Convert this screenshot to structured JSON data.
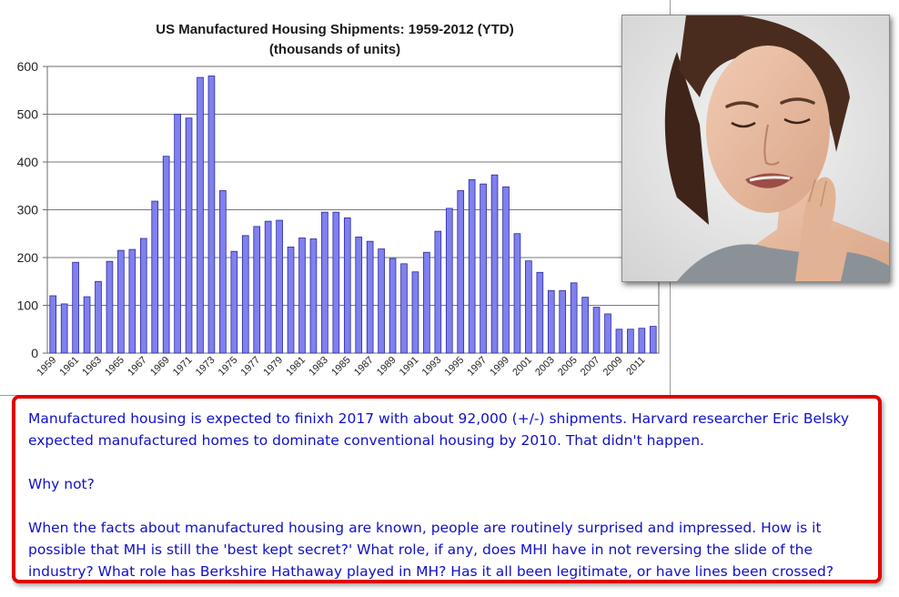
{
  "chart_data": {
    "type": "bar",
    "title": "US Manufactured Housing Shipments: 1959-2012 (YTD)",
    "subtitle": "(thousands of units)",
    "xlabel": "",
    "ylabel": "",
    "ylim": [
      0,
      600
    ],
    "yticks": [
      0,
      100,
      200,
      300,
      400,
      500,
      600
    ],
    "grid": true,
    "legend": "none",
    "bar_color": "#8080ee",
    "categories": [
      "1959",
      "1960",
      "1961",
      "1962",
      "1963",
      "1964",
      "1965",
      "1966",
      "1967",
      "1968",
      "1969",
      "1970",
      "1971",
      "1972",
      "1973",
      "1974",
      "1975",
      "1976",
      "1977",
      "1978",
      "1979",
      "1980",
      "1981",
      "1982",
      "1983",
      "1984",
      "1985",
      "1986",
      "1987",
      "1988",
      "1989",
      "1990",
      "1991",
      "1992",
      "1993",
      "1994",
      "1995",
      "1996",
      "1997",
      "1998",
      "1999",
      "2000",
      "2001",
      "2002",
      "2003",
      "2004",
      "2005",
      "2006",
      "2007",
      "2008",
      "2009",
      "2010",
      "2011",
      "2012"
    ],
    "tick_labels": [
      "1959",
      "1961",
      "1963",
      "1965",
      "1967",
      "1969",
      "1971",
      "1973",
      "1975",
      "1977",
      "1979",
      "1981",
      "1983",
      "1985",
      "1987",
      "1989",
      "1991",
      "1993",
      "1995",
      "1997",
      "1999",
      "2001",
      "2003",
      "2005",
      "2007",
      "2009",
      "2011"
    ],
    "values": [
      120,
      103,
      190,
      118,
      150,
      192,
      215,
      217,
      240,
      318,
      412,
      500,
      492,
      577,
      580,
      340,
      213,
      246,
      265,
      276,
      278,
      222,
      241,
      239,
      295,
      295,
      283,
      243,
      234,
      218,
      198,
      187,
      170,
      211,
      255,
      303,
      340,
      363,
      354,
      373,
      348,
      250,
      193,
      169,
      131,
      131,
      147,
      117,
      96,
      82,
      50,
      50,
      52,
      56
    ]
  },
  "photo": {
    "icon": "woman-toothache-photo"
  },
  "callout": {
    "p1": "Manufactured housing is expected to finixh 2017 with about 92,000 (+/-) shipments.  Harvard researcher Eric Belsky expected manufactured homes to dominate conventional housing by 2010.  That didn't happen.",
    "p2": "Why not?",
    "p3": "When the facts about manufactured housing are known, people are routinely surprised and impressed.  How is it possible that MH is still the 'best kept secret?'  What role, if any, does MHI have in not reversing the slide of the industry?  What role has Berkshire Hathaway played in MH?  Has it all been legitimate, or have lines been crossed?",
    "border_color": "#e00000",
    "text_color": "#1010c8"
  }
}
